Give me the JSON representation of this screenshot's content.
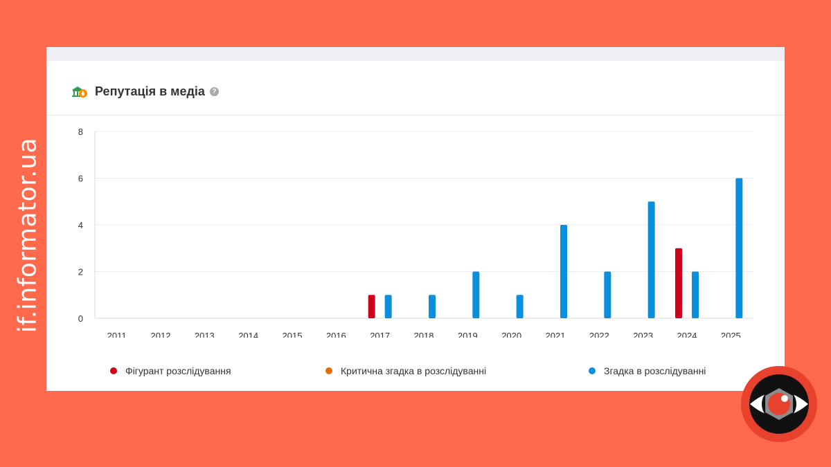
{
  "watermark": "if.informator.ua",
  "header": {
    "title": "Репутація в медіа",
    "help": "?",
    "icon": "bank-fire-icon"
  },
  "colors": {
    "background": "#ff6a4d",
    "figurant": "#d0021b",
    "critical": "#e07000",
    "mention": "#0a8fdc"
  },
  "chart_data": {
    "type": "bar",
    "categories": [
      "2011",
      "2012",
      "2013",
      "2014",
      "2015",
      "2016",
      "2017",
      "2018",
      "2019",
      "2020",
      "2021",
      "2022",
      "2023",
      "2024",
      "2025"
    ],
    "series": [
      {
        "name": "Фігурант розслідування",
        "color": "#d0021b",
        "values": [
          0,
          0,
          0,
          0,
          0,
          0,
          1,
          0,
          0,
          0,
          0,
          0,
          0,
          3,
          0
        ]
      },
      {
        "name": "Критична згадка в розслідуванні",
        "color": "#e07000",
        "values": [
          0,
          0,
          0,
          0,
          0,
          0,
          0,
          0,
          0,
          0,
          0,
          0,
          0,
          0,
          0
        ]
      },
      {
        "name": "Згадка в розслідуванні",
        "color": "#0a8fdc",
        "values": [
          0,
          0,
          0,
          0,
          0,
          0,
          1,
          1,
          2,
          1,
          4,
          2,
          5,
          2,
          6
        ]
      }
    ],
    "yticks": [
      0,
      2,
      4,
      6,
      8
    ],
    "ylim": [
      0,
      8
    ],
    "grid": true,
    "legend_position": "bottom"
  }
}
